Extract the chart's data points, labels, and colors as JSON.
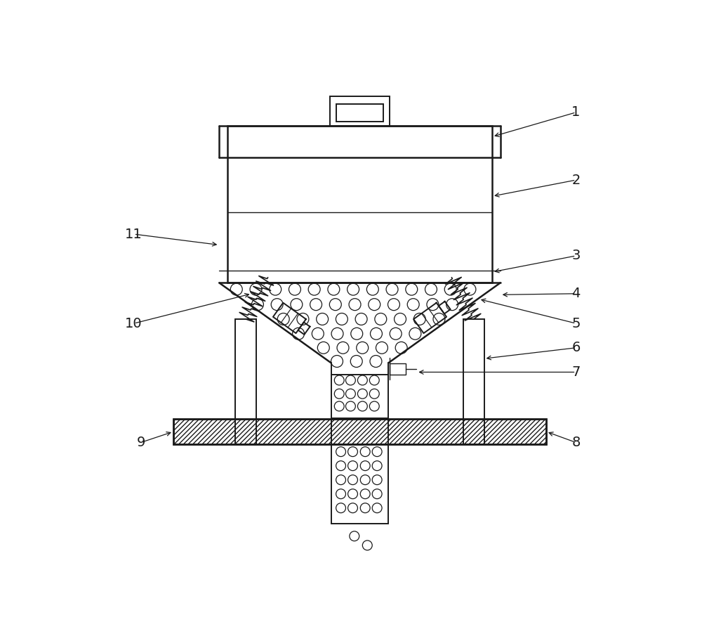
{
  "bg_color": "#ffffff",
  "line_color": "#1a1a1a",
  "label_color": "#1a1a1a",
  "fig_width": 10.0,
  "fig_height": 9.02,
  "dpi": 100
}
